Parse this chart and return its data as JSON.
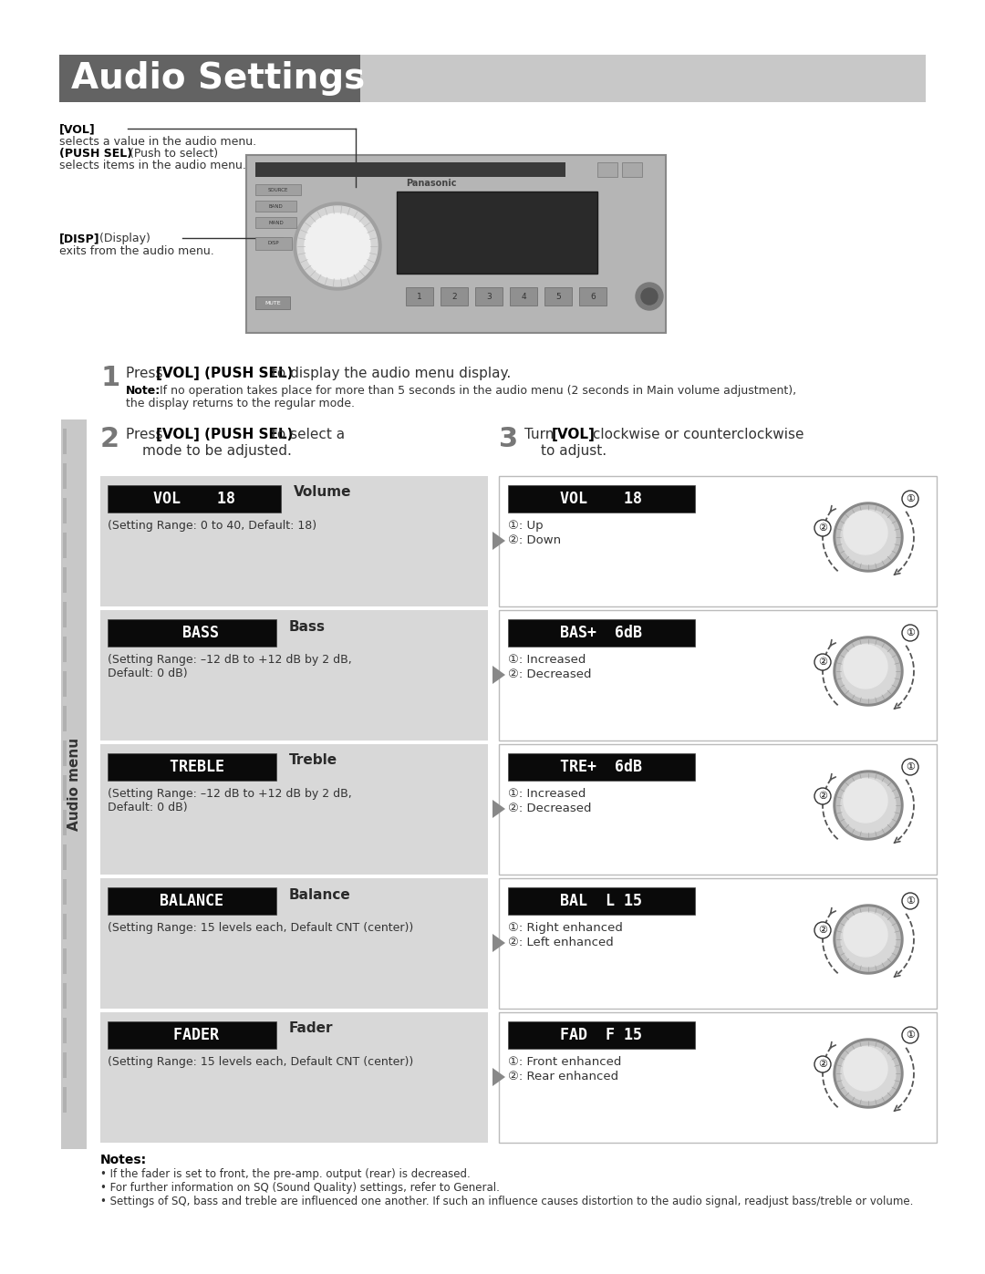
{
  "title": "Audio Settings",
  "title_bg_dark": "#636363",
  "title_bg_light": "#c8c8c8",
  "title_text_color": "#ffffff",
  "page_bg": "#ffffff",
  "section_bg": "#d8d8d8",
  "display_bg": "#0a0a0a",
  "sidebar_bg": "#c8c8c8",
  "sidebar_stripe": "#b0b0b0",
  "sidebar_text": "Audio menu",
  "vol_label": "[VOL]",
  "vol_desc1": "selects a value in the audio menu.",
  "vol_desc2_bold": "(PUSH SEL)",
  "vol_desc2_normal": " (Push to select)",
  "vol_desc3": "selects items in the audio menu.",
  "disp_label": "[DISP]",
  "disp_label2": " (Display)",
  "disp_desc": "exits from the audio menu.",
  "step1_num": "1",
  "step1_pre": "Press ",
  "step1_bold": "[VOL] (PUSH SEL)",
  "step1_post": " to display the audio menu display.",
  "step1_note_bold": "Note:",
  "step1_note": " If no operation takes place for more than 5 seconds in the audio menu (2 seconds in Main volume adjustment),",
  "step1_note2": "the display returns to the regular mode.",
  "step2_num": "2",
  "step2_pre": "Press ",
  "step2_bold": "[VOL] (PUSH SEL)",
  "step2_post": " to select a",
  "step2_line2": "mode to be adjusted.",
  "step3_num": "3",
  "step3_pre": "Turn ",
  "step3_bold": "[VOL]",
  "step3_post": " clockwise or counterclockwise",
  "step3_line2": "to adjust.",
  "rows": [
    {
      "display_left": "VOL    18",
      "label": "Volume",
      "desc_line1": "(Setting Range: 0 to 40, Default: 18)",
      "desc_line2": "",
      "display_right": "VOL    18",
      "action1": "①: Up",
      "action2": "②: Down",
      "vol_display": true
    },
    {
      "display_left": "  BASS",
      "label": "Bass",
      "desc_line1": "(Setting Range: –12 dB to +12 dB by 2 dB,",
      "desc_line2": "Default: 0 dB)",
      "display_right": "BAS+  6dB",
      "action1": "①: Increased",
      "action2": "②: Decreased",
      "vol_display": false
    },
    {
      "display_left": " TREBLE",
      "label": "Treble",
      "desc_line1": "(Setting Range: –12 dB to +12 dB by 2 dB,",
      "desc_line2": "Default: 0 dB)",
      "display_right": "TRE+  6dB",
      "action1": "①: Increased",
      "action2": "②: Decreased",
      "vol_display": false
    },
    {
      "display_left": "BALANCE",
      "label": "Balance",
      "desc_line1": "(Setting Range: 15 levels each, Default CNT (center))",
      "desc_line2": "",
      "display_right": "BAL  L 15",
      "action1": "①: Right enhanced",
      "action2": "②: Left enhanced",
      "vol_display": false
    },
    {
      "display_left": " FADER",
      "label": "Fader",
      "desc_line1": "(Setting Range: 15 levels each, Default CNT (center))",
      "desc_line2": "",
      "display_right": "FAD  F 15",
      "action1": "①: Front enhanced",
      "action2": "②: Rear enhanced",
      "vol_display": false
    }
  ],
  "notes_header": "Notes:",
  "notes": [
    "If the fader is set to front, the pre-amp. output (rear) is decreased.",
    "For further information on SQ (Sound Quality) settings, refer to General.",
    "Settings of SQ, bass and treble are influenced one another. If such an influence causes distortion to the audio signal, readjust bass/treble or volume."
  ]
}
